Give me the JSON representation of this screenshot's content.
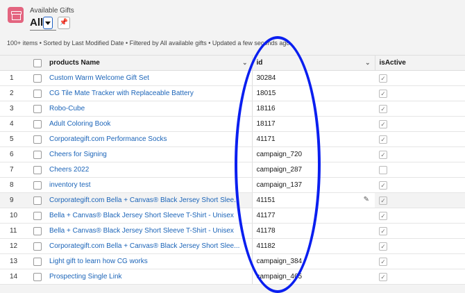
{
  "header": {
    "object_label": "Available Gifts",
    "list_view": "All",
    "pin_icon": "pin-icon",
    "meta": "100+ items • Sorted by Last Modified Date • Filtered by All available gifts • Updated a few seconds ago"
  },
  "table": {
    "columns": [
      "products Name",
      "id",
      "isActive"
    ],
    "rows": [
      {
        "n": "1",
        "name": "Custom Warm Welcome Gift Set",
        "id": "30284",
        "active": true
      },
      {
        "n": "2",
        "name": "CG Tile Mate Tracker with Replaceable Battery",
        "id": "18015",
        "active": true
      },
      {
        "n": "3",
        "name": "Robo-Cube",
        "id": "18116",
        "active": true
      },
      {
        "n": "4",
        "name": "Adult Coloring Book",
        "id": "18117",
        "active": true
      },
      {
        "n": "5",
        "name": "Corporategift.com Performance Socks",
        "id": "41171",
        "active": true
      },
      {
        "n": "6",
        "name": "Cheers for Signing",
        "id": "campaign_720",
        "active": true
      },
      {
        "n": "7",
        "name": "Cheers 2022",
        "id": "campaign_287",
        "active": false
      },
      {
        "n": "8",
        "name": "inventory test",
        "id": "campaign_137",
        "active": true
      },
      {
        "n": "9",
        "name": "Corporategift.com Bella + Canvas® Black Jersey Short Slee...",
        "id": "41151",
        "active": true
      },
      {
        "n": "10",
        "name": "Bella + Canvas® Black Jersey Short Sleeve T-Shirt - Unisex",
        "id": "41177",
        "active": true
      },
      {
        "n": "11",
        "name": "Bella + Canvas® Black Jersey Short Sleeve T-Shirt - Unisex",
        "id": "41178",
        "active": true
      },
      {
        "n": "12",
        "name": "Corporategift.com Bella + Canvas® Black Jersey Short Slee...",
        "id": "41182",
        "active": true
      },
      {
        "n": "13",
        "name": "Light gift to learn how CG works",
        "id": "campaign_384",
        "active": true
      },
      {
        "n": "14",
        "name": "Prospecting Single Link",
        "id": "campaign_465",
        "active": true
      }
    ]
  },
  "annotation_color": "#0a1ff0"
}
